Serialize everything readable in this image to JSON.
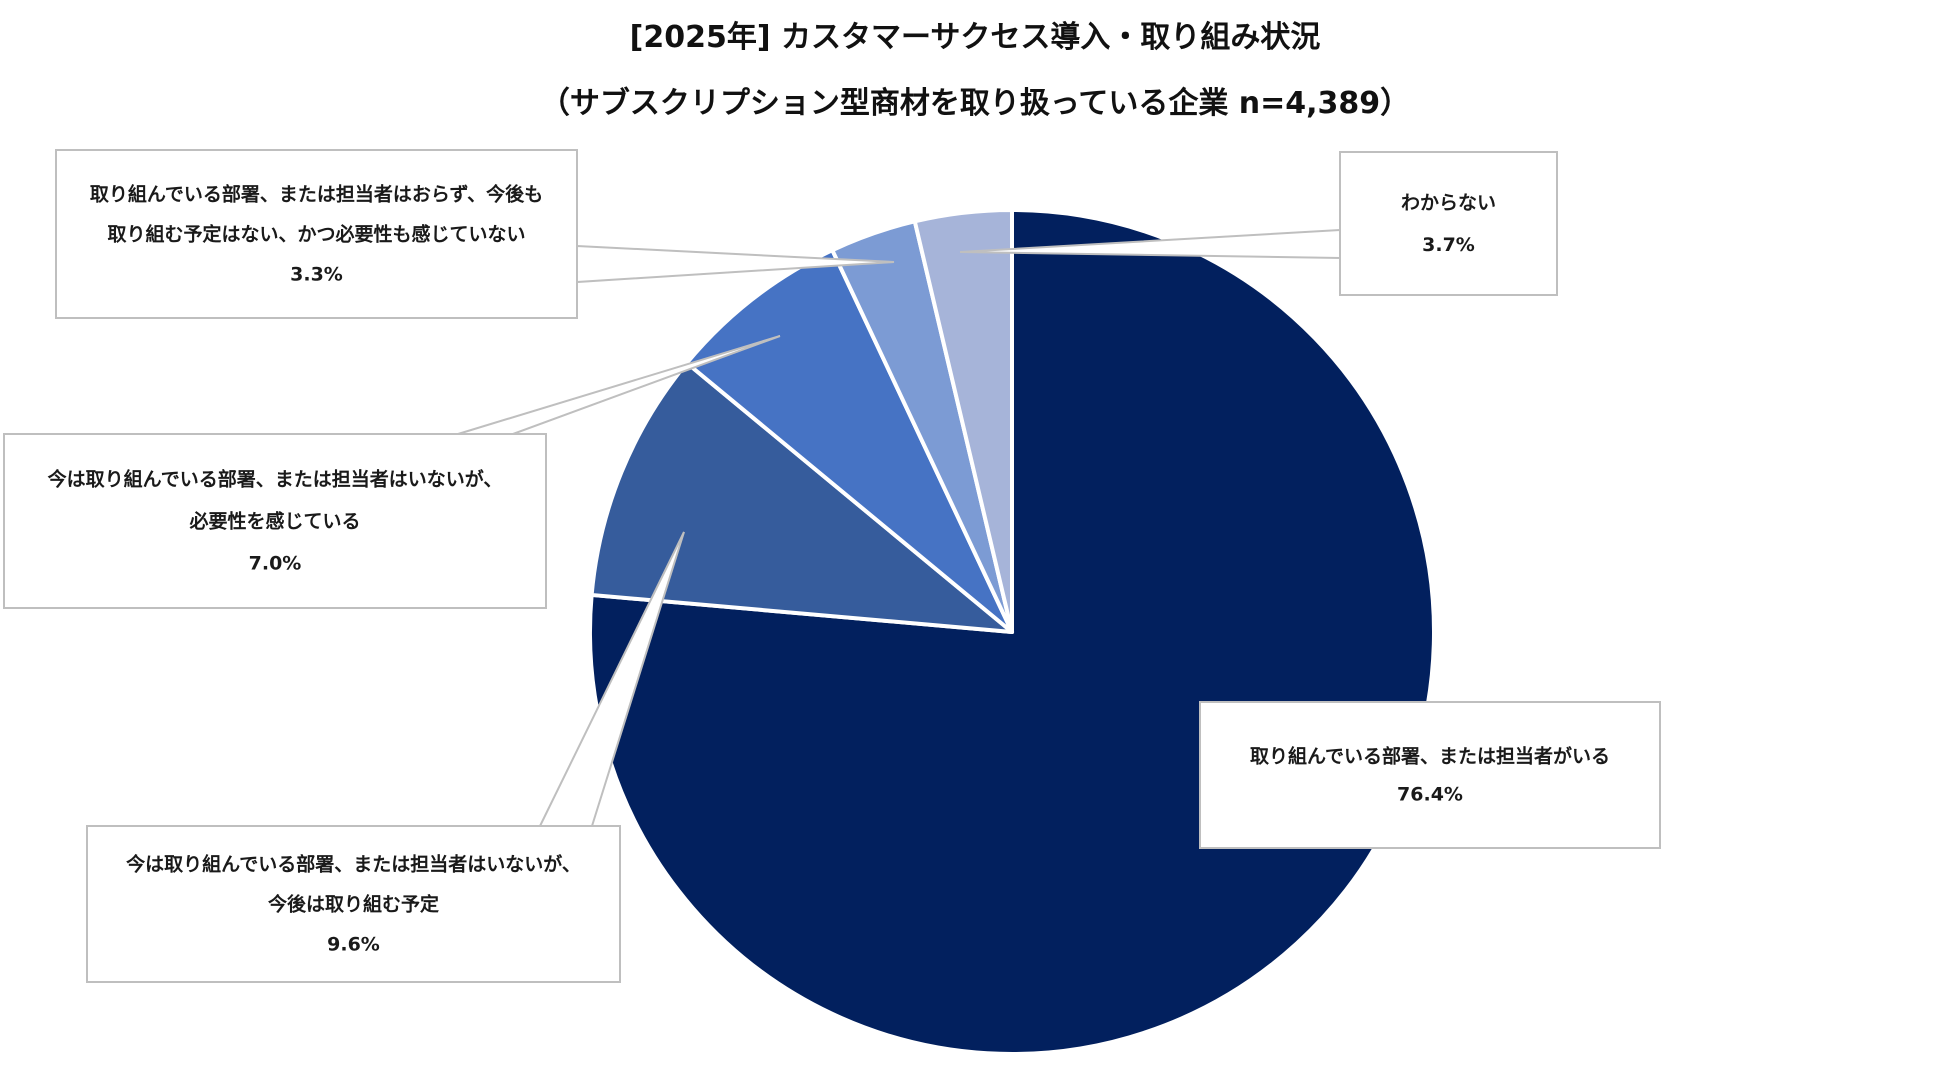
{
  "chart_data": {
    "type": "pie",
    "title": "[2025年] カスタマーサクセス導入・取り組み状況",
    "subtitle": "（サブスクリプション型商材を取り扱っている企業 n=4,389）",
    "start_angle": "12 o'clock",
    "direction": "clockwise",
    "slices": [
      {
        "label_lines": [
          "取り組んでいる部署、または担当者がいる"
        ],
        "value": 76.4,
        "value_label": "76.4%",
        "color": "#02205e"
      },
      {
        "label_lines": [
          "今は取り組んでいる部署、または担当者はいないが、",
          "今後は取り組む予定"
        ],
        "value": 9.6,
        "value_label": "9.6%",
        "color": "#365c9c"
      },
      {
        "label_lines": [
          "今は取り組んでいる部署、または担当者はいないが、",
          "必要性を感じている"
        ],
        "value": 7.0,
        "value_label": "7.0%",
        "color": "#4673c4"
      },
      {
        "label_lines": [
          "取り組んでいる部署、または担当者はおらず、今後も",
          "取り組む予定はない、かつ必要性も感じていない"
        ],
        "value": 3.3,
        "value_label": "3.3%",
        "color": "#7c9bd4"
      },
      {
        "label_lines": [
          "わからない"
        ],
        "value": 3.7,
        "value_label": "3.7%",
        "color": "#a6b4d9"
      }
    ],
    "legend": "none (callout labels)"
  }
}
